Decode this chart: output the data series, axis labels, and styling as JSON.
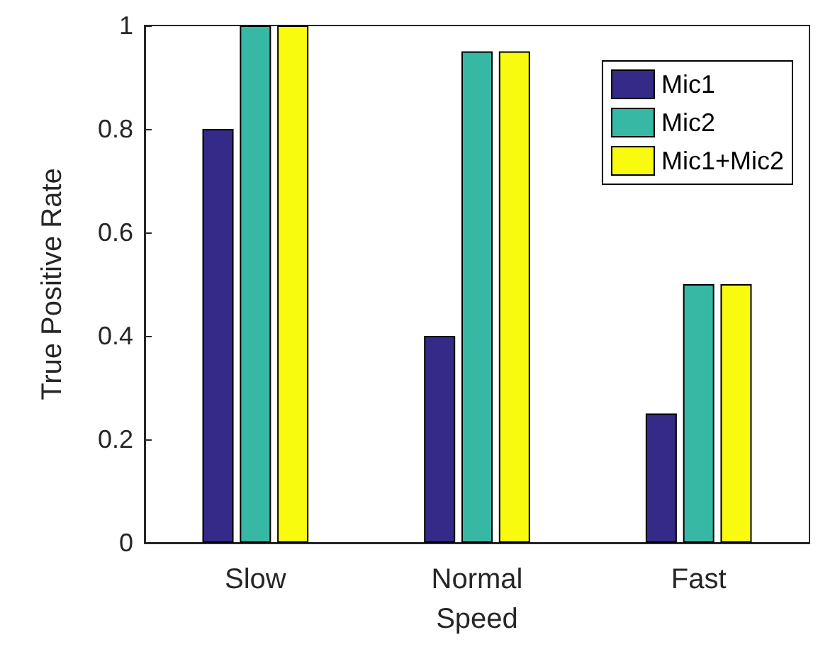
{
  "chart_data": {
    "type": "bar",
    "xlabel": "Speed",
    "ylabel": "True Positive Rate",
    "categories": [
      "Slow",
      "Normal",
      "Fast"
    ],
    "series": [
      {
        "name": "Mic1",
        "color": "#352a87",
        "values": [
          0.8,
          0.4,
          0.25
        ]
      },
      {
        "name": "Mic2",
        "color": "#36b8a5",
        "values": [
          1,
          0.95,
          0.5
        ]
      },
      {
        "name": "Mic1+Mic2",
        "color": "#f9fb0e",
        "values": [
          1,
          0.95,
          0.5
        ]
      }
    ],
    "ylim": [
      0,
      1
    ],
    "yticks": [
      0,
      0.2,
      0.4,
      0.6,
      0.8,
      1
    ],
    "grid": false,
    "legend": "top right"
  }
}
